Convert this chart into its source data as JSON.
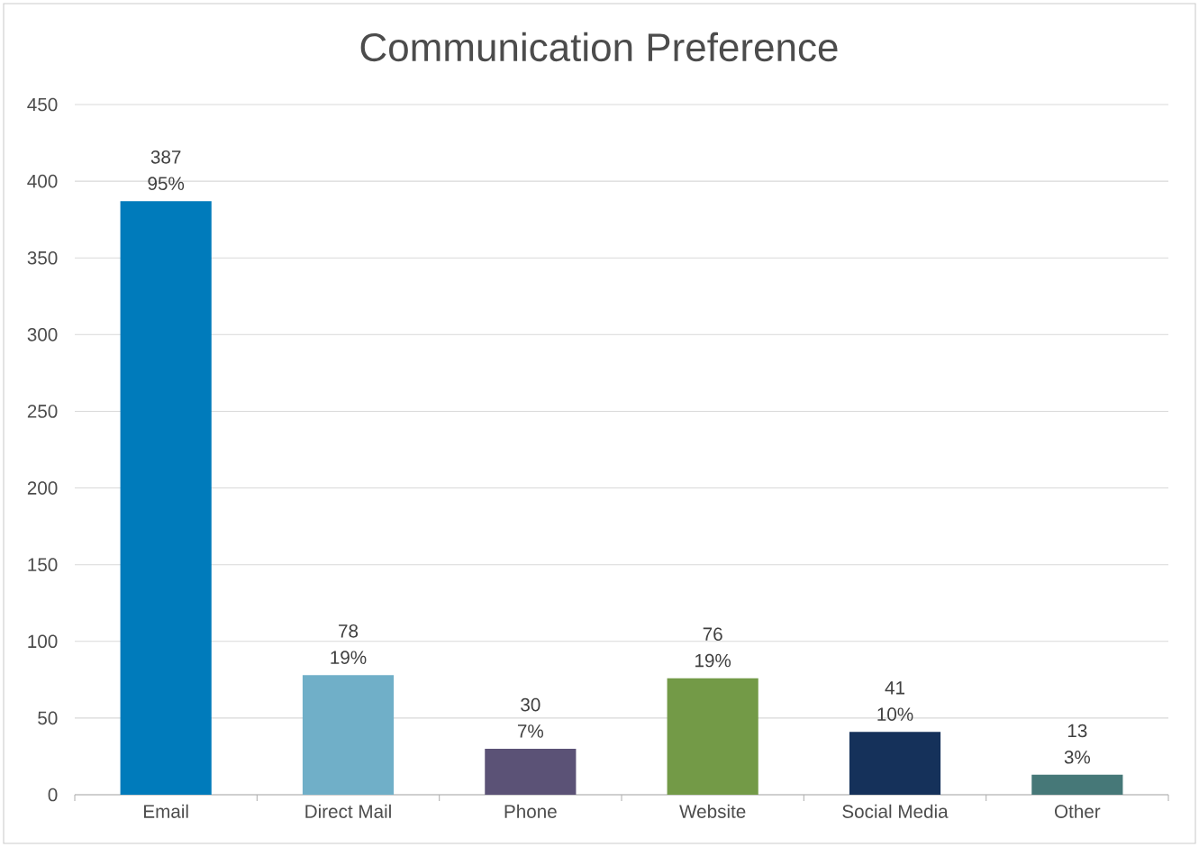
{
  "chart_data": {
    "type": "bar",
    "title": "Communication Preference",
    "categories": [
      "Email",
      "Direct Mail",
      "Phone",
      "Website",
      "Social Media",
      "Other"
    ],
    "values": [
      387,
      78,
      30,
      76,
      41,
      13
    ],
    "colors": [
      "#007bbb",
      "#70afc8",
      "#5b5276",
      "#739a47",
      "#15315a",
      "#467878"
    ],
    "ylim": [
      0,
      450
    ],
    "yticks": [
      0,
      50,
      100,
      150,
      200,
      250,
      300,
      350,
      400,
      450
    ],
    "grid": "y",
    "data_labels": true,
    "annotations": [
      {
        "text": "95%",
        "x": "Email",
        "y": 387
      },
      {
        "text": "19%",
        "x": "Direct Mail",
        "y": 78
      },
      {
        "text": "7%",
        "x": "Phone",
        "y": 30
      },
      {
        "text": "19%",
        "x": "Website",
        "y": 76
      },
      {
        "text": "10%",
        "x": "Social Media",
        "y": 41
      },
      {
        "text": "3%",
        "x": "Other",
        "y": 13
      }
    ]
  }
}
